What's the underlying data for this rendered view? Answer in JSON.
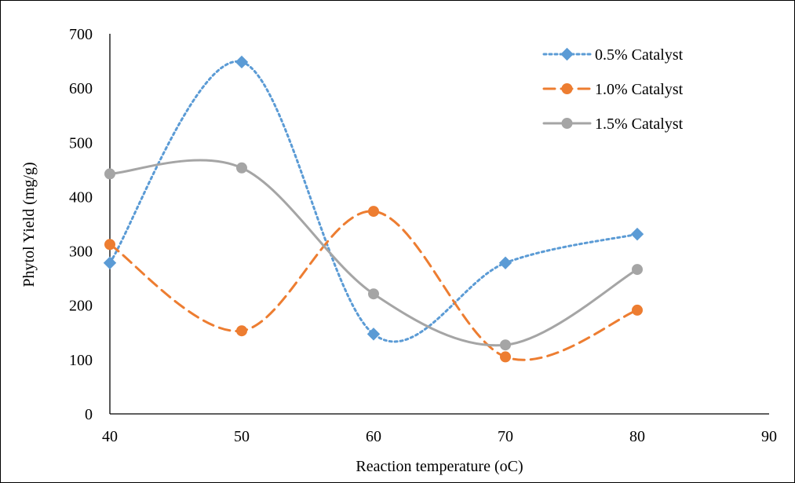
{
  "chart_data": {
    "type": "line",
    "xlabel": "Reaction temperature (oC)",
    "ylabel": "Phytol Yield (mg/g)",
    "xlim": [
      40,
      90
    ],
    "ylim": [
      0,
      700
    ],
    "xticks": [
      40,
      50,
      60,
      70,
      80,
      90
    ],
    "yticks": [
      0,
      100,
      200,
      300,
      400,
      500,
      600,
      700
    ],
    "x": [
      40,
      50,
      60,
      70,
      80
    ],
    "grid": false,
    "legend_position": "top-right",
    "series": [
      {
        "name": "0.5% Catalyst",
        "values": [
          278,
          648,
          147,
          278,
          331
        ],
        "color": "#5B9BD5",
        "line_style": "dotted",
        "marker": "diamond"
      },
      {
        "name": "1.0% Catalyst",
        "values": [
          312,
          153,
          373,
          105,
          191
        ],
        "color": "#ED7D31",
        "line_style": "dashed",
        "marker": "circle"
      },
      {
        "name": "1.5% Catalyst",
        "values": [
          442,
          453,
          221,
          127,
          266
        ],
        "color": "#A5A5A5",
        "line_style": "solid",
        "marker": "circle"
      }
    ]
  }
}
